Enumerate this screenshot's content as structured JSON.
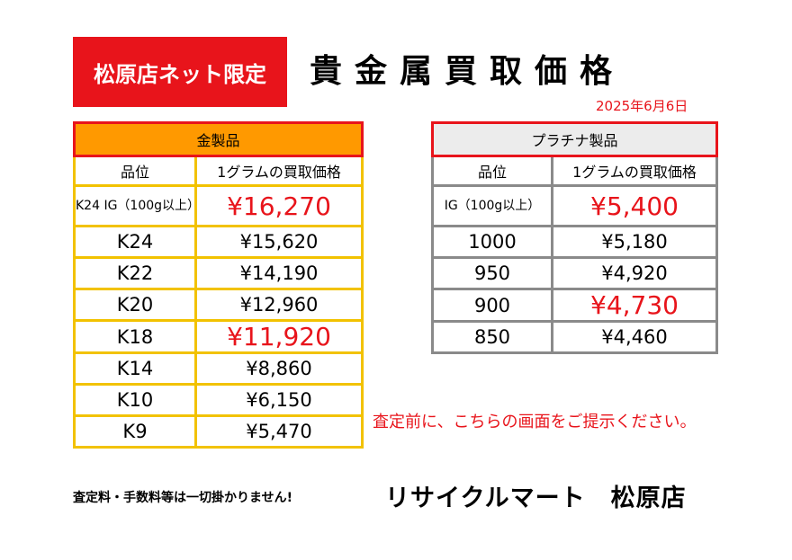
{
  "badge": "松原店ネット限定",
  "title": "貴金属買取価格",
  "date": "2025年6月6日",
  "gold": {
    "heading": "金製品",
    "col_grade": "品位",
    "col_price": "1グラムの買取価格",
    "rows": [
      {
        "grade": "K24 IG（100g以上）",
        "price": "¥16,270"
      },
      {
        "grade": "K24",
        "price": "¥15,620"
      },
      {
        "grade": "K22",
        "price": "¥14,190"
      },
      {
        "grade": "K20",
        "price": "¥12,960"
      },
      {
        "grade": "K18",
        "price": "¥11,920"
      },
      {
        "grade": "K14",
        "price": "¥8,860"
      },
      {
        "grade": "K10",
        "price": "¥6,150"
      },
      {
        "grade": "K9",
        "price": "¥5,470"
      }
    ]
  },
  "platinum": {
    "heading": "プラチナ製品",
    "col_grade": "品位",
    "col_price": "1グラムの買取価格",
    "rows": [
      {
        "grade": "IG（100g以上）",
        "price": "¥5,400"
      },
      {
        "grade": "1000",
        "price": "¥5,180"
      },
      {
        "grade": "950",
        "price": "¥4,920"
      },
      {
        "grade": "900",
        "price": "¥4,730"
      },
      {
        "grade": "850",
        "price": "¥4,460"
      }
    ]
  },
  "notice": "査定前に、こちらの画面をご提示ください。",
  "fee_note": "査定料・手数料等は一切掛かりません!",
  "store_name": "リサイクルマート　松原店",
  "colors": {
    "accent_red": "#e8141b",
    "gold_header": "#ff9900",
    "gold_border": "#f2c200",
    "plat_border": "#8a8a8a"
  }
}
